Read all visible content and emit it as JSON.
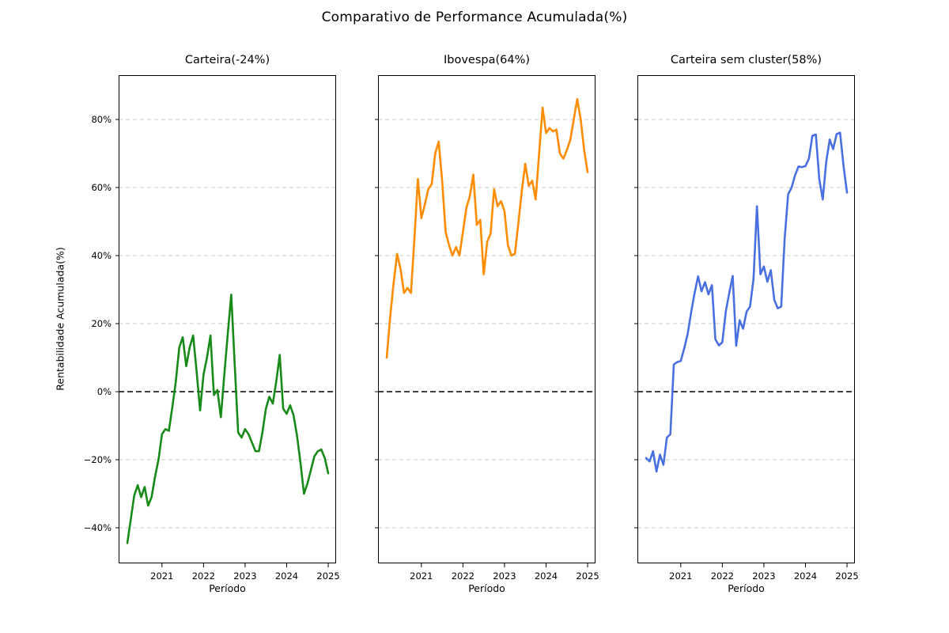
{
  "header": {
    "suptitle": "Comparativo de Performance Acumulada(%)"
  },
  "axes": {
    "ylabel": "Rentabilidade Acumulada(%)",
    "xlabel": "Período"
  },
  "chart_data": {
    "type": "line",
    "title": "Comparativo de Performance Acumulada(%)",
    "xlabel": "Período",
    "ylabel": "Rentabilidade Acumulada(%)",
    "ylim": [
      -50,
      95
    ],
    "yticks": [
      80,
      60,
      40,
      20,
      0,
      -20,
      -40
    ],
    "ytick_labels": [
      "80%",
      "60%",
      "40%",
      "20%",
      "0%",
      "−20%",
      "−40%"
    ],
    "xtick_indices": [
      10,
      22,
      34,
      46,
      58
    ],
    "xtick_labels": [
      "2021",
      "2022",
      "2023",
      "2024",
      "2025"
    ],
    "grid": true,
    "zero_line": true,
    "legend": "none",
    "categories": [
      "2020-03",
      "2020-04",
      "2020-05",
      "2020-06",
      "2020-07",
      "2020-08",
      "2020-09",
      "2020-10",
      "2020-11",
      "2020-12",
      "2021-01",
      "2021-02",
      "2021-03",
      "2021-04",
      "2021-05",
      "2021-06",
      "2021-07",
      "2021-08",
      "2021-09",
      "2021-10",
      "2021-11",
      "2021-12",
      "2022-01",
      "2022-02",
      "2022-03",
      "2022-04",
      "2022-05",
      "2022-06",
      "2022-07",
      "2022-08",
      "2022-09",
      "2022-10",
      "2022-11",
      "2022-12",
      "2023-01",
      "2023-02",
      "2023-03",
      "2023-04",
      "2023-05",
      "2023-06",
      "2023-07",
      "2023-08",
      "2023-09",
      "2023-10",
      "2023-11",
      "2023-12",
      "2024-01",
      "2024-02",
      "2024-03",
      "2024-04",
      "2024-05",
      "2024-06",
      "2024-07",
      "2024-08",
      "2024-09",
      "2024-10",
      "2024-11",
      "2024-12",
      "2025-01"
    ],
    "series": [
      {
        "name": "Carteira(-24%)",
        "final_return_pct": -24,
        "color": "#178a17",
        "values": [
          -44.5,
          -37.5,
          -30.5,
          -27.5,
          -31,
          -28,
          -33.5,
          -31,
          -25,
          -20,
          -12.5,
          -11,
          -11.5,
          -4.5,
          3,
          13,
          16,
          7.5,
          13,
          16.5,
          6,
          -5.5,
          5,
          10,
          16.5,
          -1,
          0.5,
          -7.5,
          5,
          17,
          28.5,
          8,
          -12,
          -13.5,
          -11,
          -12.5,
          -15,
          -17.5,
          -17.5,
          -12,
          -5,
          -1.5,
          -3.5,
          3,
          10.8,
          -5,
          -6.5,
          -4,
          -7,
          -13,
          -21,
          -30,
          -27,
          -23,
          -19,
          -17.5,
          -17,
          -19.5,
          -24
        ]
      },
      {
        "name": "Ibovespa(64%)",
        "final_return_pct": 64,
        "color": "#ff8c00",
        "values": [
          10,
          22,
          32,
          40.5,
          36,
          29,
          30.5,
          29,
          45,
          62.5,
          51,
          55,
          59.5,
          61,
          70,
          73.5,
          62,
          47,
          43,
          40,
          42.5,
          40,
          47,
          54,
          57.5,
          63.8,
          49,
          50.5,
          34.5,
          44,
          46.5,
          59.5,
          54.5,
          56,
          53,
          43,
          40,
          40.5,
          49.5,
          59,
          67,
          60.5,
          62,
          56.5,
          70,
          83.5,
          76,
          77.5,
          76.5,
          77,
          70,
          68.5,
          71,
          74,
          80,
          86,
          80,
          71,
          64.5
        ]
      },
      {
        "name": "Carteira sem cluster(58%)",
        "final_return_pct": 58,
        "color": "#4970e0",
        "values": [
          -19.5,
          -20.5,
          -17.5,
          -23.5,
          -18.5,
          -21.5,
          -13.5,
          -12.5,
          8,
          8.7,
          9,
          12.7,
          17,
          23.3,
          29,
          33.9,
          29.5,
          32.2,
          28.6,
          31.3,
          15.4,
          13.6,
          14.5,
          23.5,
          29,
          34,
          13.5,
          21,
          18.5,
          23.5,
          25,
          33,
          54.5,
          34.5,
          36.8,
          32.3,
          35.7,
          27,
          24.5,
          25,
          45,
          58,
          60,
          63.6,
          66.2,
          66,
          66.3,
          68.5,
          75.2,
          75.6,
          62.4,
          56.5,
          67.6,
          74.1,
          71.3,
          75.7,
          76.1,
          66.3,
          58.5
        ]
      }
    ]
  }
}
